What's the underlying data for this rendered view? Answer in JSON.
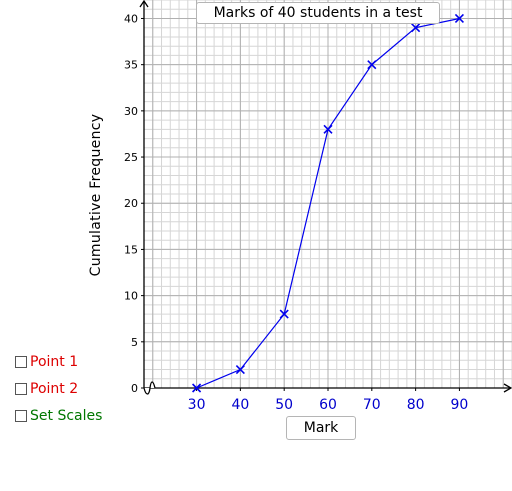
{
  "chart_data": {
    "type": "line",
    "title": "Marks of 40 students in a test",
    "xlabel": "Mark",
    "ylabel": "Cumulative Frequency",
    "x": [
      30,
      40,
      50,
      60,
      70,
      80,
      90
    ],
    "series": [
      {
        "values": [
          0,
          2,
          8,
          28,
          35,
          39,
          40
        ]
      }
    ],
    "xlim": [
      18,
      102
    ],
    "ylim": [
      0,
      42
    ],
    "x_ticks": [
      30,
      40,
      50,
      60,
      70,
      80,
      90
    ],
    "y_ticks": [
      0,
      5,
      10,
      15,
      20,
      25,
      30,
      35,
      40
    ],
    "grid": true,
    "axis_break": true,
    "colors": {
      "series": "#0000ee",
      "grid_minor": "#d6d6d6",
      "grid_major": "#b0b0b0",
      "x_tick_labels": "#0000cc",
      "axis": "#000000"
    }
  },
  "controls": [
    {
      "label": "Point 1",
      "color": "#dd0000",
      "checked": false
    },
    {
      "label": "Point 2",
      "color": "#dd0000",
      "checked": false
    },
    {
      "label": "Set Scales",
      "color": "#007700",
      "checked": false
    }
  ]
}
